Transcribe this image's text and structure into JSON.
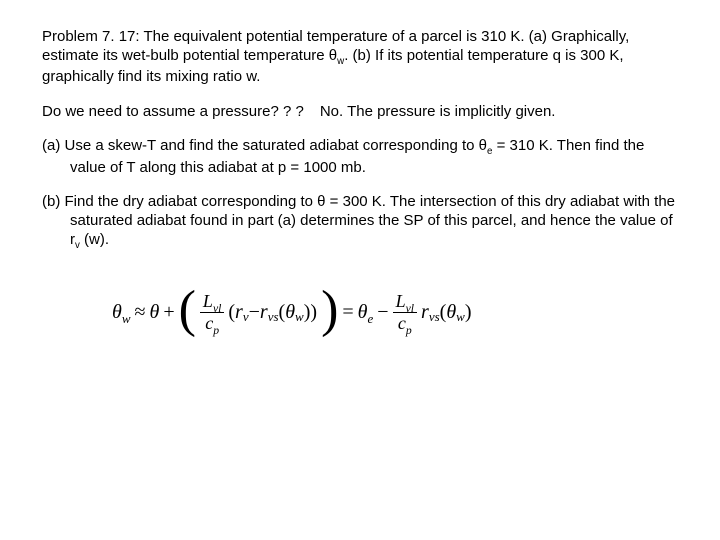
{
  "problem": {
    "heading": "Problem 7. 17: The equivalent potential temperature of a parcel is 310 K. (a) Graphically, estimate its wet-bulb potential temperature θ",
    "heading_sub": "w",
    "heading_tail": ". (b) If its potential temperature q is 300 K, graphically find its mixing ratio w."
  },
  "question": {
    "q": "Do we need to assume a pressure? ? ?",
    "a": "No.  The pressure is implicitly given."
  },
  "parts": {
    "a": {
      "label": "(a)",
      "t1": "Use a skew-T and find the saturated adiabat corresponding to θ",
      "sub1": "e",
      "t2": " = 310 K. Then find the value of T along this adiabat at p = 1000 mb."
    },
    "b": {
      "label": "(b)",
      "t1": "Find the dry adiabat corresponding to θ = 300 K.  The intersection of this dry adiabat with the saturated adiabat found in part (a) determines the SP of this parcel, and hence the value of r",
      "sub1": "v",
      "t2": " (w)."
    }
  },
  "formula": {
    "lhs_theta": "θ",
    "lhs_sub": "w",
    "approx": " ≈ ",
    "theta": "θ",
    "plus": " + ",
    "frac1_num_L": "L",
    "frac1_num_sub": "vl",
    "frac1_den_c": "c",
    "frac1_den_sub": "p",
    "inner_r": "r",
    "inner_r_sub": "v",
    "inner_minus": " − ",
    "inner_rvs": "r",
    "inner_rvs_sub": "vs",
    "inner_arg_theta": "θ",
    "inner_arg_sub": "w",
    "eq": " = ",
    "rhs_theta": "θ",
    "rhs_theta_sub": "e",
    "rhs_minus": " − ",
    "rhs_rvs": "r",
    "rhs_rvs_sub": "vs",
    "rhs_arg_theta": "θ",
    "rhs_arg_sub": "w"
  }
}
